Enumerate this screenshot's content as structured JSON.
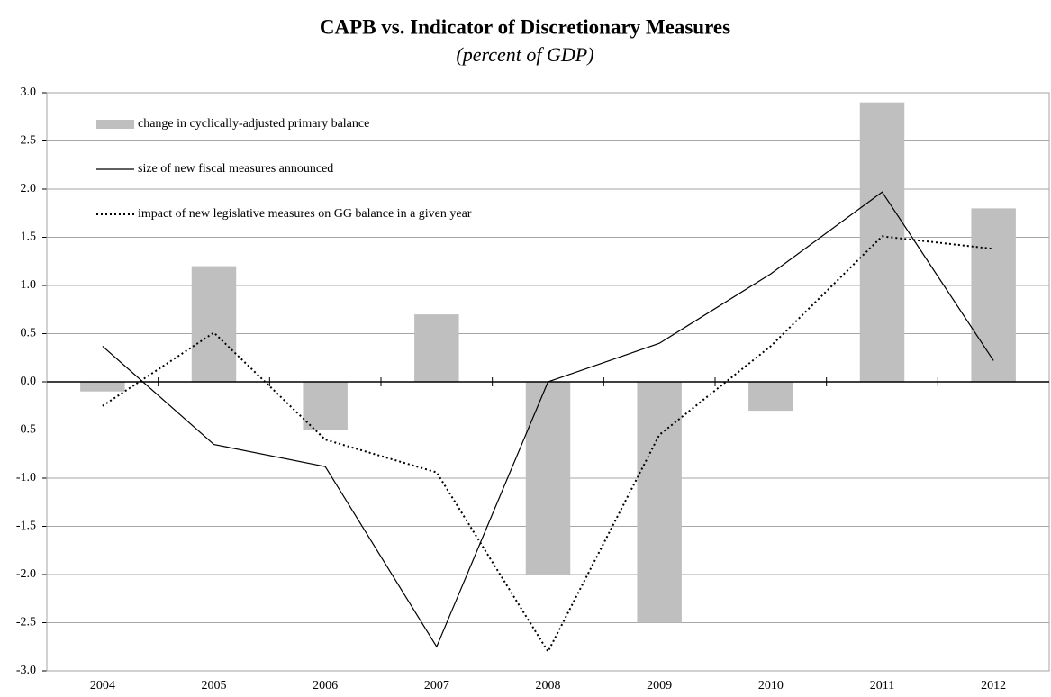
{
  "chart_data": {
    "type": "bar",
    "title": "CAPB vs. Indicator of Discretionary Measures",
    "subtitle": "(percent of GDP)",
    "categories": [
      "2004",
      "2005",
      "2006",
      "2007",
      "2008",
      "2009",
      "2010",
      "2011",
      "2012"
    ],
    "series": [
      {
        "name": "change in cyclically-adjusted primary balance",
        "type": "bar",
        "color": "#bfbfbf",
        "values": [
          -0.1,
          1.2,
          -0.5,
          0.7,
          -2.0,
          -2.5,
          -0.3,
          2.9,
          1.8
        ]
      },
      {
        "name": "size of new fiscal measures announced",
        "type": "line",
        "dash": "solid",
        "color": "#000000",
        "values": [
          0.37,
          -0.65,
          -0.88,
          -2.75,
          0.0,
          0.4,
          1.12,
          1.97,
          0.22
        ]
      },
      {
        "name": "impact of new legislative measures on GG balance in a given year",
        "type": "line",
        "dash": "dotted",
        "color": "#000000",
        "values": [
          -0.25,
          0.51,
          -0.6,
          -0.94,
          -2.8,
          -0.55,
          0.37,
          1.51,
          1.38
        ]
      }
    ],
    "ylim": [
      -3,
      3
    ],
    "yticks": [
      {
        "value": -3,
        "label": "-3.0"
      },
      {
        "value": -2.5,
        "label": "-2.5"
      },
      {
        "value": -2,
        "label": "-2.0"
      },
      {
        "value": -1.5,
        "label": "-1.5"
      },
      {
        "value": -1,
        "label": "-1.0"
      },
      {
        "value": -0.5,
        "label": "-0.5"
      },
      {
        "value": 0,
        "label": "0.0"
      },
      {
        "value": 0.5,
        "label": "0.5"
      },
      {
        "value": 1,
        "label": "1.0"
      },
      {
        "value": 1.5,
        "label": "1.5"
      },
      {
        "value": 2,
        "label": "2.0"
      },
      {
        "value": 2.5,
        "label": "2.5"
      },
      {
        "value": 3,
        "label": "3.0"
      }
    ],
    "grid": true,
    "legend": "top-left"
  }
}
